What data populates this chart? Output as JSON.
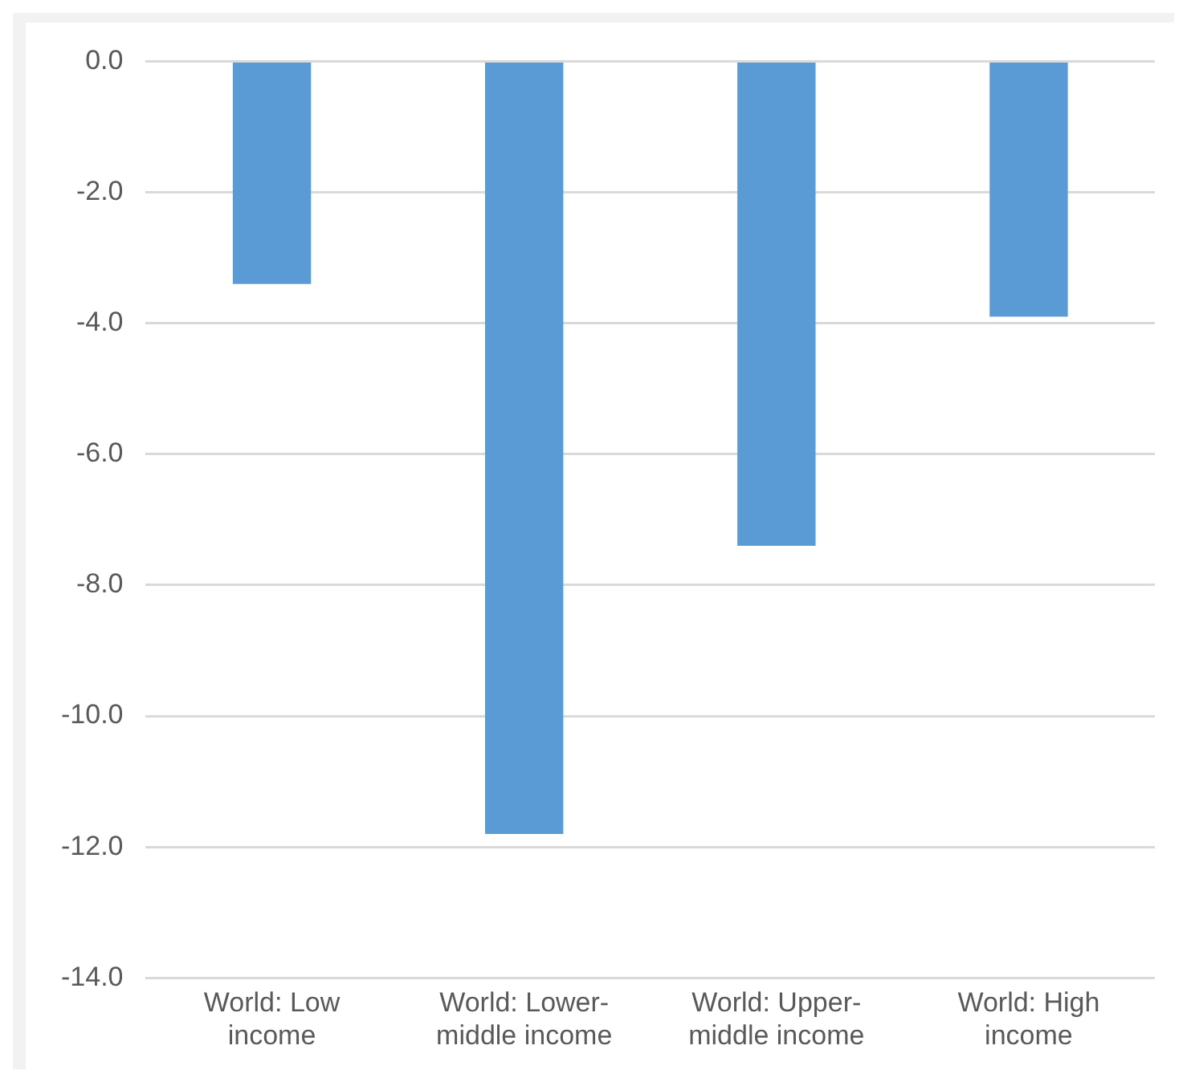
{
  "chart_data": {
    "type": "bar",
    "categories": [
      "World: Low income",
      "World: Lower-middle income",
      "World: Upper-middle income",
      "World: High income"
    ],
    "values": [
      -3.4,
      -11.8,
      -7.4,
      -3.9
    ],
    "color": "#5b9bd5",
    "ylim": [
      -14,
      0
    ],
    "yticks": [
      {
        "value": -14,
        "label": "-14.0"
      },
      {
        "value": -12,
        "label": "-12.0"
      },
      {
        "value": -10,
        "label": "-10.0"
      },
      {
        "value": -8,
        "label": "-8.0"
      },
      {
        "value": -6,
        "label": "-6.0"
      },
      {
        "value": -4,
        "label": "-4.0"
      },
      {
        "value": -2,
        "label": "-2.0"
      },
      {
        "value": 0,
        "label": "0.0"
      }
    ],
    "grid": "y"
  }
}
